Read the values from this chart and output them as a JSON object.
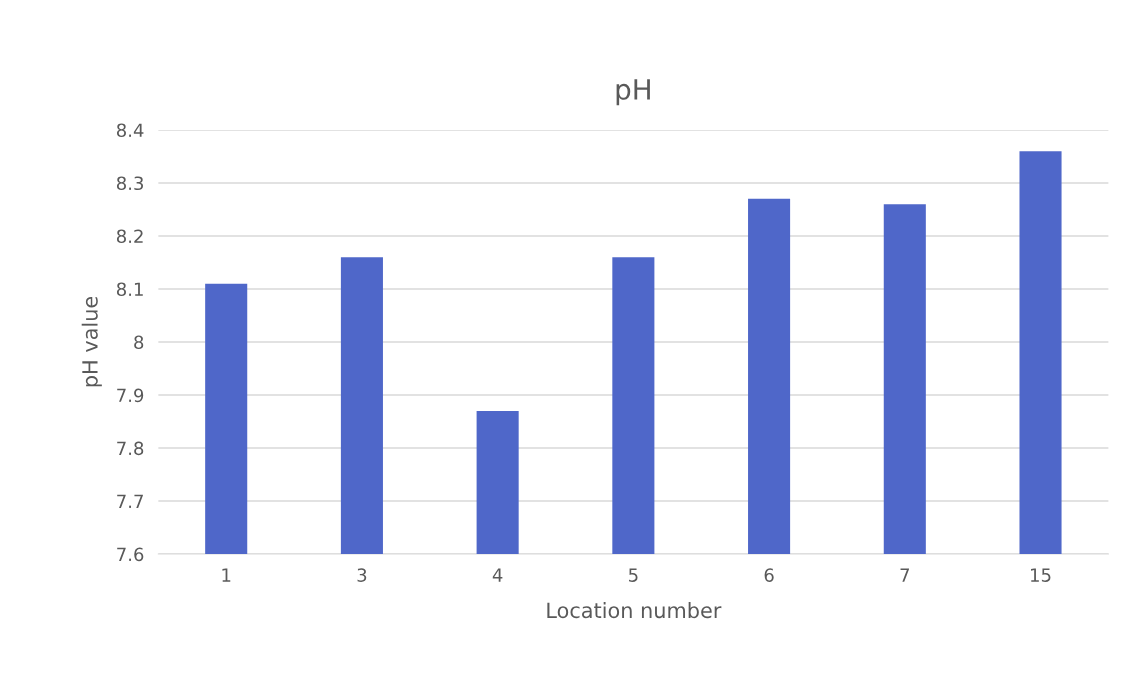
{
  "chart_data": {
    "type": "bar",
    "title": "pH",
    "xlabel": "Location number",
    "ylabel": "pH value",
    "categories": [
      "1",
      "3",
      "4",
      "5",
      "6",
      "7",
      "15"
    ],
    "values": [
      8.11,
      8.16,
      7.87,
      8.16,
      8.27,
      8.26,
      8.36
    ],
    "color": "#4f67c9",
    "ylim": [
      7.6,
      8.4
    ],
    "yticks": [
      7.6,
      7.7,
      7.8,
      7.9,
      8,
      8.1,
      8.2,
      8.3,
      8.4
    ],
    "grid": "y",
    "legend": false
  }
}
